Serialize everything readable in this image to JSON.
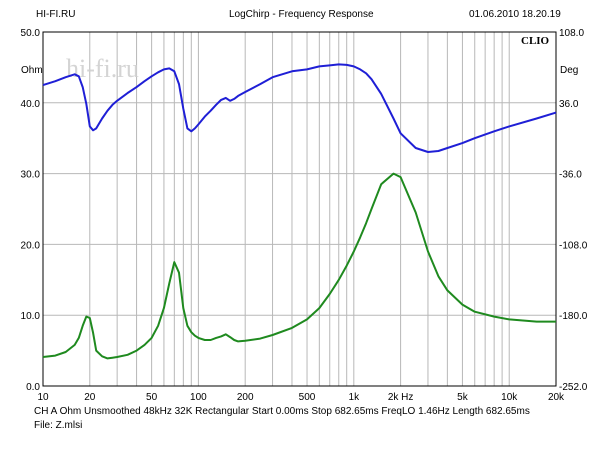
{
  "header": {
    "left": "HI-FI.RU",
    "center": "LogChirp - Frequency Response",
    "right": "01.06.2010 18.20.19"
  },
  "brand": "CLIO",
  "watermark": "hi-fi.ru",
  "footer": {
    "line1": "CH A   Ohm   Unsmoothed   48kHz   32K   Rectangular   Start 0.00ms     Stop 682.65ms     FreqLO 1.46Hz     Length 682.65ms",
    "line2": "File: Z.mlsi"
  },
  "colors": {
    "magnitude": "#1f1fd6",
    "phase": "#1f8a1f",
    "grid": "#b8b8b8",
    "frame": "#000000"
  },
  "chart_data": {
    "type": "line",
    "x_scale": "log",
    "xlim": [
      10,
      20000
    ],
    "x_ticks": [
      10,
      20,
      50,
      100,
      200,
      500,
      1000,
      2000,
      5000,
      10000,
      20000
    ],
    "x_tick_labels": [
      "10",
      "20",
      "50",
      "100",
      "200",
      "500",
      "1k",
      "2k Hz",
      "5k",
      "10k",
      "20k"
    ],
    "left_axis": {
      "unit": "Ohm",
      "ylim": [
        0,
        50
      ],
      "ticks": [
        0,
        10,
        20,
        30,
        40,
        50
      ],
      "tick_labels": [
        "0.0",
        "10.0",
        "20.0",
        "30.0",
        "40.0",
        "50.0"
      ]
    },
    "right_axis": {
      "unit": "Deg",
      "ylim": [
        -252,
        108
      ],
      "ticks": [
        108,
        36,
        -36,
        -108,
        -180,
        -252
      ],
      "tick_labels": [
        "108.0",
        "36.0",
        "-36.0",
        "-108.0",
        "-180.0",
        "-252.0"
      ]
    },
    "grid": true,
    "series": [
      {
        "axis": "right",
        "color": "magnitude",
        "x": [
          10,
          12,
          14,
          16,
          17,
          18,
          19,
          20,
          21,
          22,
          24,
          26,
          28,
          30,
          35,
          40,
          45,
          50,
          55,
          60,
          65,
          70,
          75,
          80,
          85,
          90,
          95,
          100,
          110,
          120,
          130,
          140,
          150,
          160,
          170,
          180,
          200,
          250,
          300,
          400,
          500,
          600,
          700,
          800,
          900,
          1000,
          1100,
          1200,
          1300,
          1500,
          1800,
          2000,
          2500,
          3000,
          3500,
          4000,
          5000,
          6000,
          8000,
          10000,
          15000,
          20000
        ],
        "y": [
          54,
          58,
          62,
          65,
          63,
          52,
          35,
          12,
          8,
          10,
          20,
          28,
          34,
          38,
          46,
          52,
          58,
          63,
          67,
          70,
          71,
          68,
          55,
          30,
          10,
          7,
          10,
          14,
          22,
          28,
          34,
          39,
          41,
          38,
          40,
          43,
          47,
          55,
          62,
          68,
          70,
          73,
          74,
          75,
          74.5,
          73,
          70,
          66,
          60,
          45,
          20,
          5,
          -10,
          -14,
          -13,
          -10,
          -5,
          0,
          7,
          12,
          20,
          26
        ]
      },
      {
        "axis": "left",
        "color": "phase",
        "x": [
          10,
          12,
          14,
          16,
          17,
          18,
          19,
          20,
          21,
          22,
          24,
          26,
          28,
          30,
          35,
          40,
          45,
          50,
          55,
          60,
          65,
          70,
          75,
          80,
          85,
          90,
          95,
          100,
          110,
          120,
          130,
          140,
          150,
          160,
          170,
          180,
          200,
          250,
          300,
          400,
          500,
          600,
          700,
          800,
          900,
          1000,
          1100,
          1200,
          1300,
          1500,
          1800,
          2000,
          2500,
          3000,
          3500,
          4000,
          5000,
          6000,
          8000,
          10000,
          15000,
          20000
        ],
        "y": [
          4.1,
          4.3,
          4.8,
          5.8,
          6.8,
          8.5,
          9.8,
          9.6,
          7.5,
          5.0,
          4.2,
          3.9,
          4.0,
          4.1,
          4.4,
          5.0,
          5.8,
          6.8,
          8.5,
          11.0,
          14.5,
          17.5,
          16.0,
          11.0,
          8.5,
          7.6,
          7.1,
          6.8,
          6.5,
          6.5,
          6.8,
          7.0,
          7.3,
          6.9,
          6.5,
          6.3,
          6.4,
          6.7,
          7.2,
          8.2,
          9.4,
          11.0,
          13.0,
          15.0,
          17.0,
          19.0,
          21.0,
          23.0,
          25.0,
          28.5,
          30.0,
          29.5,
          24.5,
          19.0,
          15.5,
          13.5,
          11.5,
          10.5,
          9.8,
          9.4,
          9.1,
          9.1
        ]
      }
    ]
  }
}
